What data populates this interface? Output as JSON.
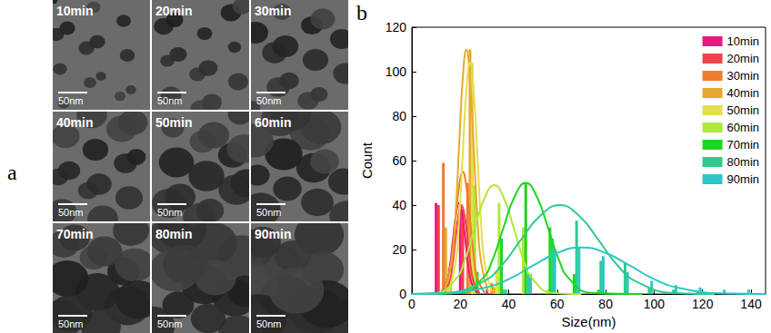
{
  "panel_a": {
    "panel_label": "a",
    "images": [
      {
        "caption": "10min",
        "scale_bar": "50nm"
      },
      {
        "caption": "20min",
        "scale_bar": "50nm"
      },
      {
        "caption": "30min",
        "scale_bar": "50nm"
      },
      {
        "caption": "40min",
        "scale_bar": "50nm"
      },
      {
        "caption": "50min",
        "scale_bar": "50nm"
      },
      {
        "caption": "60min",
        "scale_bar": "50nm"
      },
      {
        "caption": "70min",
        "scale_bar": "50nm"
      },
      {
        "caption": "80min",
        "scale_bar": "50nm"
      },
      {
        "caption": "90min",
        "scale_bar": "50nm"
      }
    ]
  },
  "chart_data": {
    "type": "bar",
    "panel_label": "b",
    "x_label": "Size(nm)",
    "y_label": "Count",
    "xlim": [
      0,
      146
    ],
    "xticks": [
      0,
      20,
      40,
      60,
      80,
      100,
      120,
      140
    ],
    "ylim": [
      0,
      120
    ],
    "yticks": [
      0,
      20,
      40,
      60,
      80,
      100,
      120
    ],
    "grid": false,
    "legend": "upper right",
    "series": [
      {
        "name": "10min",
        "color": "#e8197c",
        "x": [
          10,
          20
        ],
        "values": [
          41,
          40
        ],
        "fit": {
          "x": [
            12,
            14.5,
            15.75,
            17,
            18.25,
            19.5,
            20.75,
            22,
            23.25,
            24.5,
            27
          ],
          "y": [
            0.5,
            5.5,
            13,
            25,
            36,
            41,
            36,
            25,
            13,
            5.5,
            0.5
          ]
        }
      },
      {
        "name": "20min",
        "color": "#f0424a",
        "x": [
          11,
          21,
          31
        ],
        "values": [
          40,
          38,
          2
        ],
        "fit": {
          "x": [
            13,
            15.5,
            16.75,
            18,
            19.25,
            20.5,
            21.75,
            23,
            24.25,
            25.5,
            28
          ],
          "y": [
            0.4,
            5.4,
            12.8,
            24.4,
            35.2,
            40,
            35.2,
            24.4,
            12.8,
            5.4,
            0.4
          ]
        }
      },
      {
        "name": "30min",
        "color": "#f07c2c",
        "x": [
          13,
          23,
          33
        ],
        "values": [
          59,
          50,
          5
        ],
        "fit": {
          "x": [
            12,
            15,
            16.5,
            18,
            19.5,
            21,
            22.5,
            24,
            25.5,
            27,
            30
          ],
          "y": [
            0.6,
            7.4,
            17.6,
            33.5,
            48.4,
            55,
            48.4,
            33.5,
            17.6,
            7.4,
            0.6
          ]
        }
      },
      {
        "name": "40min",
        "color": "#e8a830",
        "x": [
          14,
          24,
          34
        ],
        "values": [
          30,
          110,
          3
        ],
        "fit": {
          "x": [
            13.5,
            16.5,
            18,
            19.5,
            21,
            22.5,
            24,
            25.5,
            27,
            28.5,
            31.5
          ],
          "y": [
            1.2,
            14.9,
            35.2,
            66.7,
            96.8,
            110,
            96.8,
            66.7,
            35.2,
            14.9,
            1.2
          ]
        }
      },
      {
        "name": "50min",
        "color": "#e2e04a",
        "x": [
          15,
          25,
          35
        ],
        "values": [
          12,
          104,
          10
        ],
        "fit": {
          "x": [
            15,
            18,
            19.5,
            21,
            22.5,
            24,
            25.5,
            27,
            28.5,
            30,
            33
          ],
          "y": [
            1.1,
            14,
            33.3,
            63.1,
            91.5,
            104,
            91.5,
            63.1,
            33.3,
            14,
            1.1
          ]
        }
      },
      {
        "name": "60min",
        "color": "#aee83c",
        "x": [
          16,
          26,
          36,
          46,
          56
        ],
        "values": [
          5,
          49,
          41,
          30,
          2
        ],
        "fit": {
          "x": [
            0,
            10,
            18,
            22,
            26,
            30,
            34,
            38,
            42,
            46,
            50,
            58,
            70
          ],
          "y": [
            0,
            0.5,
            6.6,
            15.7,
            29.9,
            43.1,
            49,
            43.1,
            29.9,
            15.7,
            6.6,
            0.5,
            0
          ]
        }
      },
      {
        "name": "70min",
        "color": "#1fd61f",
        "x": [
          27,
          37,
          47,
          57,
          67,
          77
        ],
        "values": [
          10,
          25,
          50,
          30,
          9,
          2
        ],
        "fit": {
          "x": [
            0,
            20,
            29,
            33.5,
            38,
            42.5,
            47,
            51.5,
            56,
            60.5,
            65,
            74,
            95
          ],
          "y": [
            0,
            0.6,
            6.8,
            16,
            30.5,
            44,
            50,
            44,
            30.5,
            16,
            6.8,
            0.6,
            0
          ]
        }
      },
      {
        "name": "80min",
        "color": "#2ecb8e",
        "x": [
          38,
          48,
          58,
          68,
          78,
          88,
          98,
          108,
          118
        ],
        "values": [
          2,
          9,
          25,
          33,
          15,
          14,
          3,
          2,
          1
        ],
        "fit": {
          "x": [
            0,
            13,
            29,
            37,
            45,
            53,
            61,
            69,
            77,
            85,
            93,
            109,
            125
          ],
          "y": [
            0,
            0.4,
            5.4,
            12.8,
            24.4,
            35.2,
            40,
            35.2,
            24.4,
            12.8,
            5.4,
            0.4,
            0
          ]
        }
      },
      {
        "name": "90min",
        "color": "#2ec6c6",
        "x": [
          39,
          49,
          59,
          69,
          79,
          89,
          99,
          109,
          119,
          129,
          139
        ],
        "values": [
          2,
          9,
          20,
          21,
          17,
          10,
          6,
          4,
          3,
          2,
          2
        ],
        "fit": {
          "x": [
            0,
            10,
            30,
            40,
            50,
            60,
            70,
            80,
            90,
            100,
            110,
            130,
            146
          ],
          "y": [
            0,
            0.2,
            2.8,
            6.7,
            12.8,
            18.5,
            21,
            18.5,
            12.8,
            6.7,
            2.8,
            0.2,
            0
          ]
        }
      }
    ]
  }
}
